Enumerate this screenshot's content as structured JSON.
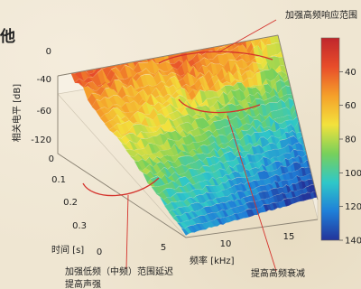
{
  "corner_text": "他",
  "chart_data": {
    "type": "surface",
    "zlabel": "相关电平 [dB]",
    "z_ticks": [
      "0",
      "-40",
      "-60",
      "-120"
    ],
    "time_label": "时间 [s]",
    "time_ticks": [
      "0",
      "0.1",
      "0.2",
      "0.3"
    ],
    "freq_label": "频率 [kHz]",
    "freq_ticks": [
      "0",
      "5",
      "10",
      "15"
    ],
    "colorbar": {
      "ticks": [
        "40",
        "60",
        "80",
        "100",
        "120",
        "140"
      ],
      "range": [
        20,
        140
      ],
      "colors": [
        "#c0262c",
        "#e84d2a",
        "#f5a02a",
        "#f3e23c",
        "#78d05a",
        "#2fc8c8",
        "#1f7fd8",
        "#23349a"
      ]
    },
    "annotations": [
      {
        "id": "top",
        "text": "加强高频响应范围"
      },
      {
        "id": "low",
        "text": "加强低频（中频）范围延迟\n提高声强"
      },
      {
        "id": "high",
        "text": "提高高频衰减"
      }
    ],
    "surface": {
      "time_range": [
        0,
        0.35
      ],
      "freq_range": [
        0,
        17
      ],
      "level_range": [
        20,
        140
      ],
      "note": "relative level vs time & frequency; red = high, blue = low"
    }
  }
}
